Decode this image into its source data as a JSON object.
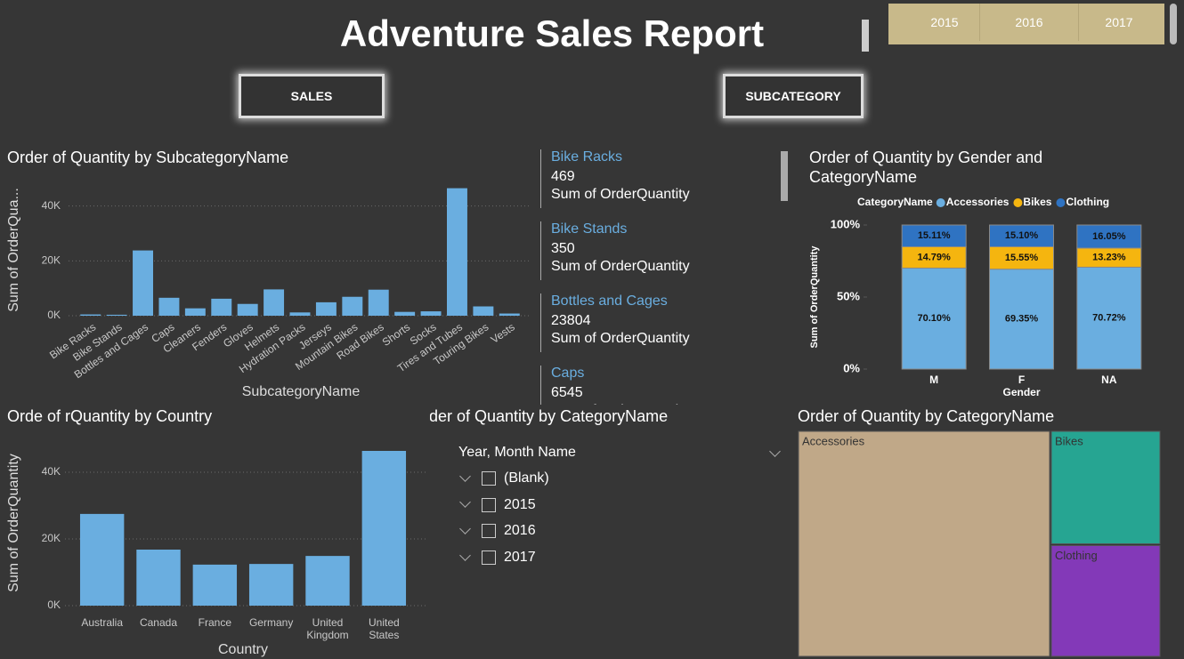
{
  "header": {
    "title": "Adventure Sales Report"
  },
  "year_slicer": [
    "2015",
    "2016",
    "2017"
  ],
  "buttons": [
    "SALES",
    "SUBCATEGORY"
  ],
  "card_list": {
    "measure": "Sum of OrderQuantity"
  },
  "slicer": {
    "title": "Order of Quantity by CategoryName",
    "field": "Year, Month Name",
    "items": [
      "(Blank)",
      "2015",
      "2016",
      "2017"
    ]
  },
  "chart_data": [
    {
      "type": "bar",
      "title": "Order of Quantity by SubcategoryName",
      "x_label": "SubcategoryName",
      "y_label": "Sum of OrderQua...",
      "categories": [
        "Bike Racks",
        "Bike Stands",
        "Bottles and Cages",
        "Caps",
        "Cleaners",
        "Fenders",
        "Gloves",
        "Helmets",
        "Hydration Packs",
        "Jerseys",
        "Mountain Bikes",
        "Road Bikes",
        "Shorts",
        "Socks",
        "Tires and Tubes",
        "Touring Bikes",
        "Vests"
      ],
      "values": [
        469,
        350,
        23804,
        6545,
        2700,
        6200,
        4300,
        9600,
        1200,
        4900,
        6900,
        9500,
        1400,
        1600,
        46500,
        3400,
        800
      ],
      "color": "#6aaee0",
      "ylim": [
        0,
        48000
      ],
      "yticks": [
        {
          "value": 0,
          "label": "0K"
        },
        {
          "value": 20000,
          "label": "20K"
        },
        {
          "value": 40000,
          "label": "40K"
        }
      ],
      "grid": true
    },
    {
      "type": "stacked_bar",
      "title": "Order of Quantity by Gender and CategoryName",
      "x_label": "Gender",
      "y_label": "Sum of OrderQuantity",
      "legend_title": "CategoryName",
      "legend": "top",
      "categories": [
        "M",
        "F",
        "NA"
      ],
      "series": [
        {
          "name": "Accessories",
          "color": "#6aaee0",
          "values": [
            70.1,
            69.35,
            70.72
          ],
          "value_labels": [
            "70.10%",
            "69.35%",
            "70.72%"
          ]
        },
        {
          "name": "Bikes",
          "color": "#f5b50f",
          "values": [
            14.79,
            15.55,
            13.23
          ],
          "value_labels": [
            "14.79%",
            "15.55%",
            "13.23%"
          ]
        },
        {
          "name": "Clothing",
          "color": "#2f73c2",
          "values": [
            15.11,
            15.1,
            16.05
          ],
          "value_labels": [
            "15.11%",
            "15.10%",
            "16.05%"
          ]
        }
      ],
      "ylim": [
        0,
        100
      ],
      "yticks": [
        {
          "value": 0,
          "label": "0%"
        },
        {
          "value": 50,
          "label": "50%"
        },
        {
          "value": 100,
          "label": "100%"
        }
      ]
    },
    {
      "type": "bar",
      "title": "Orde of rQuantity by Country",
      "x_label": "Country",
      "y_label": "Sum of OrderQuantity",
      "categories": [
        "Australia",
        "Canada",
        "France",
        "Germany",
        "United Kingdom",
        "United States"
      ],
      "values": [
        27500,
        16800,
        12300,
        12500,
        14900,
        46400
      ],
      "color": "#6aaee0",
      "ylim": [
        0,
        48000
      ],
      "yticks": [
        {
          "value": 0,
          "label": "0K"
        },
        {
          "value": 20000,
          "label": "20K"
        },
        {
          "value": 40000,
          "label": "40K"
        }
      ],
      "grid": true
    },
    {
      "type": "treemap",
      "title": "Order of Quantity by CategoryName",
      "categories": [
        "Accessories",
        "Bikes",
        "Clothing"
      ],
      "values": [
        90000,
        19800,
        19500
      ],
      "colors": [
        "#c0a888",
        "#26a592",
        "#8339b8"
      ]
    }
  ]
}
